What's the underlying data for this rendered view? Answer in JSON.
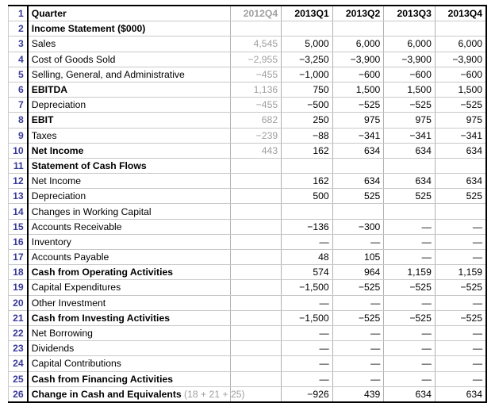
{
  "columns": {
    "rowLabel": "",
    "c0": "2012Q4",
    "c1": "2013Q1",
    "c2": "2013Q2",
    "c3": "2013Q3",
    "c4": "2013Q4"
  },
  "rows": [
    {
      "n": 1,
      "label": "Quarter",
      "bold": true,
      "isHeader": true,
      "v": [
        "2012Q4",
        "2013Q1",
        "2013Q2",
        "2013Q3",
        "2013Q4"
      ],
      "dim0": true,
      "boldVals": true
    },
    {
      "n": 2,
      "label": "Income Statement ($000)",
      "bold": true,
      "v": [
        "",
        "",
        "",
        "",
        ""
      ]
    },
    {
      "n": 3,
      "label": "Sales",
      "v": [
        "4,545",
        "5,000",
        "6,000",
        "6,000",
        "6,000"
      ],
      "dim0": true
    },
    {
      "n": 4,
      "label": "Cost of Goods Sold",
      "v": [
        "−2,955",
        "−3,250",
        "−3,900",
        "−3,900",
        "−3,900"
      ],
      "dim0": true
    },
    {
      "n": 5,
      "label": "Selling, General, and Administrative",
      "v": [
        "−455",
        "−1,000",
        "−600",
        "−600",
        "−600"
      ],
      "dim0": true
    },
    {
      "n": 6,
      "label": "EBITDA",
      "bold": true,
      "v": [
        "1,136",
        "750",
        "1,500",
        "1,500",
        "1,500"
      ],
      "dim0": true
    },
    {
      "n": 7,
      "label": "Depreciation",
      "v": [
        "−455",
        "−500",
        "−525",
        "−525",
        "−525"
      ],
      "dim0": true
    },
    {
      "n": 8,
      "label": "EBIT",
      "bold": true,
      "v": [
        "682",
        "250",
        "975",
        "975",
        "975"
      ],
      "dim0": true
    },
    {
      "n": 9,
      "label": "Taxes",
      "v": [
        "−239",
        "−88",
        "−341",
        "−341",
        "−341"
      ],
      "dim0": true
    },
    {
      "n": 10,
      "label": "Net Income",
      "bold": true,
      "v": [
        "443",
        "162",
        "634",
        "634",
        "634"
      ],
      "dim0": true
    },
    {
      "n": 11,
      "label": "Statement of Cash Flows",
      "bold": true,
      "v": [
        "",
        "",
        "",
        "",
        ""
      ]
    },
    {
      "n": 12,
      "label": "Net Income",
      "v": [
        "",
        "162",
        "634",
        "634",
        "634"
      ]
    },
    {
      "n": 13,
      "label": "Depreciation",
      "v": [
        "",
        "500",
        "525",
        "525",
        "525"
      ]
    },
    {
      "n": 14,
      "label": "Changes in Working Capital",
      "v": [
        "",
        "",
        "",
        "",
        ""
      ]
    },
    {
      "n": 15,
      "label": "Accounts Receivable",
      "v": [
        "",
        "−136",
        "−300",
        "—",
        "—"
      ]
    },
    {
      "n": 16,
      "label": "Inventory",
      "v": [
        "",
        "—",
        "—",
        "—",
        "—"
      ]
    },
    {
      "n": 17,
      "label": "Accounts Payable",
      "v": [
        "",
        "48",
        "105",
        "—",
        "—"
      ]
    },
    {
      "n": 18,
      "label": "Cash from Operating Activities",
      "bold": true,
      "v": [
        "",
        "574",
        "964",
        "1,159",
        "1,159"
      ]
    },
    {
      "n": 19,
      "label": "Capital Expenditures",
      "v": [
        "",
        "−1,500",
        "−525",
        "−525",
        "−525"
      ]
    },
    {
      "n": 20,
      "label": "Other Investment",
      "v": [
        "",
        "—",
        "—",
        "—",
        "—"
      ]
    },
    {
      "n": 21,
      "label": "Cash from Investing Activities",
      "bold": true,
      "v": [
        "",
        "−1,500",
        "−525",
        "−525",
        "−525"
      ]
    },
    {
      "n": 22,
      "label": "Net Borrowing",
      "v": [
        "",
        "—",
        "—",
        "—",
        "—"
      ]
    },
    {
      "n": 23,
      "label": "Dividends",
      "v": [
        "",
        "—",
        "—",
        "—",
        "—"
      ]
    },
    {
      "n": 24,
      "label": "Capital Contributions",
      "v": [
        "",
        "—",
        "—",
        "—",
        "—"
      ]
    },
    {
      "n": 25,
      "label": "Cash from Financing Activities",
      "bold": true,
      "v": [
        "",
        "—",
        "—",
        "—",
        "—"
      ]
    },
    {
      "n": 26,
      "label": "Change in Cash and Equivalents",
      "bold": true,
      "hint": "(18 + 21 + 25)",
      "v": [
        "",
        "−926",
        "439",
        "634",
        "634"
      ],
      "isLast": true
    }
  ]
}
